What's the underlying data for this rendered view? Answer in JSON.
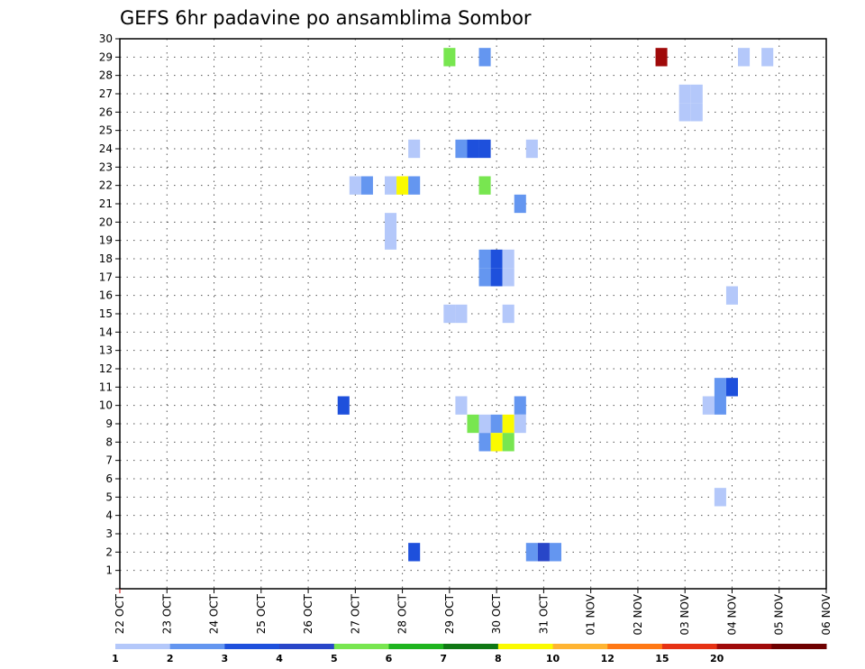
{
  "chart_data": {
    "type": "heatmap",
    "title": "GEFS 6hr padavine po ansamblima Sombor",
    "xlabel": "",
    "ylabel": "",
    "x_ticks": [
      "22 OCT",
      "23 OCT",
      "24 OCT",
      "25 OCT",
      "26 OCT",
      "27 OCT",
      "28 OCT",
      "29 OCT",
      "30 OCT",
      "31 OCT",
      "01 NOV",
      "02 NOV",
      "03 NOV",
      "04 NOV",
      "05 NOV",
      "06 NOV"
    ],
    "x_range_days": [
      0,
      15
    ],
    "y_range": [
      0,
      30
    ],
    "y_ticks": [
      1,
      2,
      3,
      4,
      5,
      6,
      7,
      8,
      9,
      10,
      11,
      12,
      13,
      14,
      15,
      16,
      17,
      18,
      19,
      20,
      21,
      22,
      23,
      24,
      25,
      26,
      27,
      28,
      29,
      30
    ],
    "grid": true,
    "colorbar": {
      "labels": [
        "1",
        "2",
        "3",
        "4",
        "5",
        "6",
        "7",
        "8",
        "10",
        "12",
        "15",
        "20"
      ],
      "colors": [
        "#b4c8fa",
        "#6496f0",
        "#1e50dc",
        "#2846c8",
        "#78e650",
        "#1eb41e",
        "#0f7814",
        "#fafa00",
        "#ffb432",
        "#ff7814",
        "#e63214",
        "#a00a0a",
        "#6e0000"
      ]
    },
    "cells_note": "each cell: day offset from 22 OCT (6-hour steps of 0.25), ensemble member, color level index into colorbar.colors",
    "cells": [
      {
        "day": 7.0,
        "member": 29,
        "level": 4
      },
      {
        "day": 7.75,
        "member": 29,
        "level": 1
      },
      {
        "day": 11.5,
        "member": 29,
        "level": 11
      },
      {
        "day": 13.25,
        "member": 29,
        "level": 0
      },
      {
        "day": 13.75,
        "member": 29,
        "level": 0
      },
      {
        "day": 12.0,
        "member": 27,
        "level": 0
      },
      {
        "day": 12.25,
        "member": 27,
        "level": 0
      },
      {
        "day": 12.0,
        "member": 26,
        "level": 0
      },
      {
        "day": 12.25,
        "member": 26,
        "level": 0
      },
      {
        "day": 6.25,
        "member": 24,
        "level": 0
      },
      {
        "day": 7.25,
        "member": 24,
        "level": 1
      },
      {
        "day": 7.5,
        "member": 24,
        "level": 2
      },
      {
        "day": 7.75,
        "member": 24,
        "level": 2
      },
      {
        "day": 8.75,
        "member": 24,
        "level": 0
      },
      {
        "day": 5.0,
        "member": 22,
        "level": 0
      },
      {
        "day": 5.25,
        "member": 22,
        "level": 1
      },
      {
        "day": 5.75,
        "member": 22,
        "level": 0
      },
      {
        "day": 6.0,
        "member": 22,
        "level": 7
      },
      {
        "day": 6.25,
        "member": 22,
        "level": 1
      },
      {
        "day": 7.75,
        "member": 22,
        "level": 4
      },
      {
        "day": 8.5,
        "member": 21,
        "level": 1
      },
      {
        "day": 5.75,
        "member": 20,
        "level": 0
      },
      {
        "day": 5.75,
        "member": 19,
        "level": 0
      },
      {
        "day": 7.75,
        "member": 18,
        "level": 1
      },
      {
        "day": 8.0,
        "member": 18,
        "level": 2
      },
      {
        "day": 8.25,
        "member": 18,
        "level": 0
      },
      {
        "day": 7.75,
        "member": 17,
        "level": 1
      },
      {
        "day": 8.0,
        "member": 17,
        "level": 2
      },
      {
        "day": 8.25,
        "member": 17,
        "level": 0
      },
      {
        "day": 13.0,
        "member": 16,
        "level": 0
      },
      {
        "day": 7.0,
        "member": 15,
        "level": 0
      },
      {
        "day": 7.25,
        "member": 15,
        "level": 0
      },
      {
        "day": 8.25,
        "member": 15,
        "level": 0
      },
      {
        "day": 12.75,
        "member": 11,
        "level": 1
      },
      {
        "day": 13.0,
        "member": 11,
        "level": 2
      },
      {
        "day": 4.75,
        "member": 10,
        "level": 2
      },
      {
        "day": 7.25,
        "member": 10,
        "level": 0
      },
      {
        "day": 8.5,
        "member": 10,
        "level": 1
      },
      {
        "day": 12.5,
        "member": 10,
        "level": 0
      },
      {
        "day": 12.75,
        "member": 10,
        "level": 1
      },
      {
        "day": 7.5,
        "member": 9,
        "level": 4
      },
      {
        "day": 7.75,
        "member": 9,
        "level": 0
      },
      {
        "day": 8.0,
        "member": 9,
        "level": 1
      },
      {
        "day": 8.25,
        "member": 9,
        "level": 7
      },
      {
        "day": 8.5,
        "member": 9,
        "level": 0
      },
      {
        "day": 7.75,
        "member": 8,
        "level": 1
      },
      {
        "day": 8.0,
        "member": 8,
        "level": 7
      },
      {
        "day": 8.25,
        "member": 8,
        "level": 4
      },
      {
        "day": 12.75,
        "member": 5,
        "level": 0
      },
      {
        "day": 6.25,
        "member": 2,
        "level": 2
      },
      {
        "day": 8.75,
        "member": 2,
        "level": 1
      },
      {
        "day": 9.0,
        "member": 2,
        "level": 3
      },
      {
        "day": 9.25,
        "member": 2,
        "level": 1
      }
    ]
  }
}
